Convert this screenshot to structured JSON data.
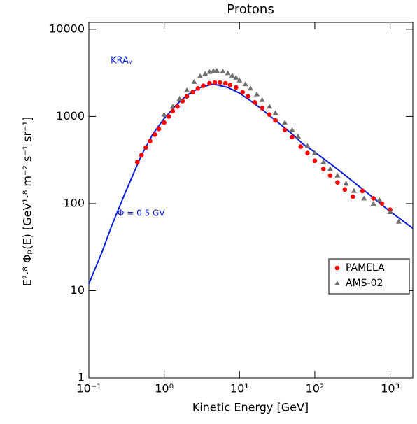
{
  "chart_data": {
    "type": "scatter",
    "title": "Protons",
    "x_label": "Kinetic Energy [GeV]",
    "y_label": "E²·⁸ Φₚ(E) [GeV¹·⁸ m⁻² s⁻¹ sr⁻¹]",
    "annotations": [
      "KRAᵧ",
      "Φ = 0.5 GV"
    ],
    "xscale": "log",
    "yscale": "log",
    "xlim": [
      0.1,
      2000
    ],
    "ylim": [
      1,
      12000
    ],
    "xticks": [
      {
        "value": 0.1,
        "label": "10⁻¹"
      },
      {
        "value": 1,
        "label": "10⁰"
      },
      {
        "value": 10,
        "label": "10¹"
      },
      {
        "value": 100,
        "label": "10²"
      },
      {
        "value": 1000,
        "label": "10³"
      }
    ],
    "yticks": [
      1,
      10,
      100,
      1000,
      10000
    ],
    "legend": "right",
    "model": {
      "color": "#0a1fd6",
      "x": [
        0.1,
        0.15,
        0.2,
        0.3,
        0.5,
        0.7,
        1,
        1.5,
        2,
        3,
        4.5,
        7,
        10,
        15,
        20,
        30,
        50,
        70,
        100,
        200,
        500,
        1000,
        2000
      ],
      "values": [
        12,
        28,
        55,
        130,
        360,
        620,
        950,
        1400,
        1750,
        2150,
        2350,
        2150,
        1850,
        1450,
        1200,
        900,
        630,
        480,
        390,
        248,
        132,
        81,
        52
      ]
    },
    "series": [
      {
        "name": "PAMELA",
        "color": "#ff0000",
        "marker": "circle",
        "x": [
          0.44,
          0.5,
          0.57,
          0.65,
          0.75,
          0.85,
          1,
          1.15,
          1.3,
          1.5,
          1.75,
          2,
          2.4,
          2.8,
          3.3,
          4,
          4.7,
          5.5,
          6.5,
          7.5,
          9,
          11,
          13,
          16,
          20,
          25,
          30,
          40,
          50,
          65,
          80,
          100,
          130,
          160,
          200,
          250,
          320,
          430,
          600,
          780,
          1000
        ],
        "values": [
          300,
          360,
          440,
          520,
          620,
          720,
          850,
          1000,
          1150,
          1300,
          1500,
          1700,
          1900,
          2100,
          2250,
          2400,
          2450,
          2450,
          2400,
          2300,
          2150,
          1900,
          1700,
          1450,
          1250,
          1050,
          900,
          700,
          580,
          450,
          380,
          310,
          250,
          210,
          175,
          145,
          120,
          140,
          115,
          100,
          85
        ]
      },
      {
        "name": "AMS-02",
        "color": "#707070",
        "marker": "triangle",
        "x": [
          1,
          1.3,
          1.6,
          2,
          2.5,
          3,
          3.5,
          4,
          4.5,
          5,
          6,
          7,
          8,
          9,
          10,
          12,
          14,
          17,
          20,
          25,
          30,
          40,
          50,
          60,
          80,
          100,
          130,
          160,
          200,
          260,
          330,
          450,
          600,
          720,
          1000,
          1300
        ],
        "values": [
          1050,
          1300,
          1600,
          2000,
          2500,
          2900,
          3100,
          3250,
          3350,
          3350,
          3300,
          3150,
          2950,
          2800,
          2600,
          2350,
          2100,
          1800,
          1550,
          1300,
          1100,
          850,
          700,
          590,
          460,
          380,
          300,
          250,
          210,
          170,
          140,
          115,
          100,
          110,
          80,
          62
        ]
      }
    ]
  }
}
